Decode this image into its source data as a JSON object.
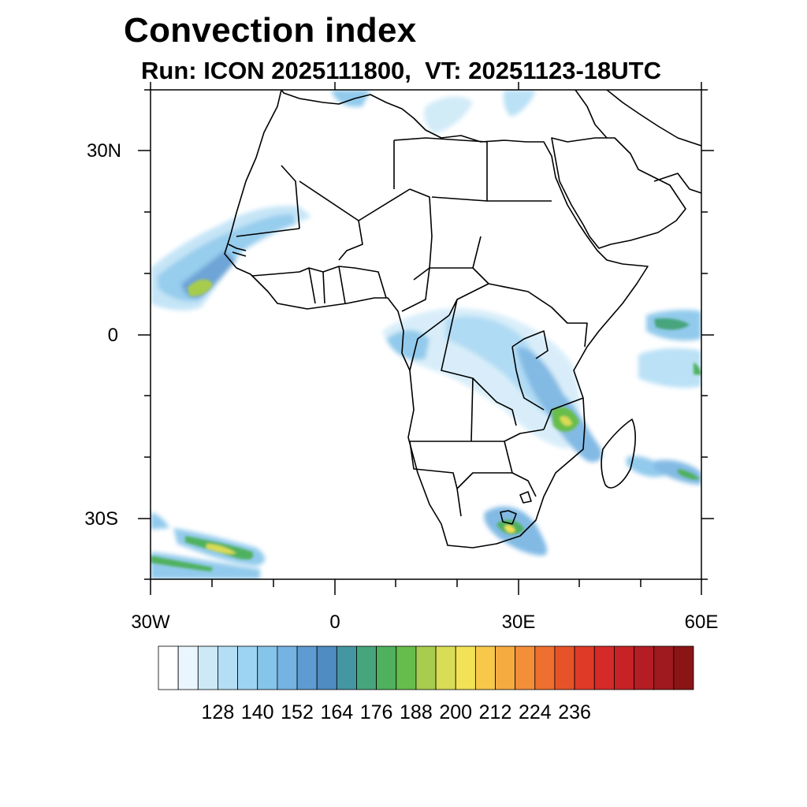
{
  "title": "Convection index",
  "subtitle": "Run: ICON 2025111800,  VT: 20251123-18UTC",
  "map": {
    "region": "Africa",
    "lon_range": [
      -30,
      60
    ],
    "lat_range": [
      -40,
      40
    ],
    "lat_tick_labels": [
      "30N",
      "0",
      "30S"
    ],
    "lon_tick_labels": [
      "30W",
      "0",
      "30E",
      "60E"
    ]
  },
  "colorbar": {
    "colors": [
      "#ffffff",
      "#eaf6fd",
      "#cde9f7",
      "#b3def5",
      "#9dd4f3",
      "#86c5ea",
      "#74b3e2",
      "#5e9bd2",
      "#4e8cc1",
      "#4596a3",
      "#46a57d",
      "#4fb15e",
      "#67bd4c",
      "#a7cc4e",
      "#d9dc55",
      "#f2e255",
      "#f7c84a",
      "#f5ab42",
      "#f38e39",
      "#ee6f2f",
      "#e65329",
      "#df3a28",
      "#d52a27",
      "#c72326",
      "#b31d23",
      "#9f1a1f",
      "#8b1515"
    ],
    "labels": [
      "128",
      "140",
      "152",
      "164",
      "176",
      "188",
      "200",
      "212",
      "224",
      "236"
    ]
  }
}
